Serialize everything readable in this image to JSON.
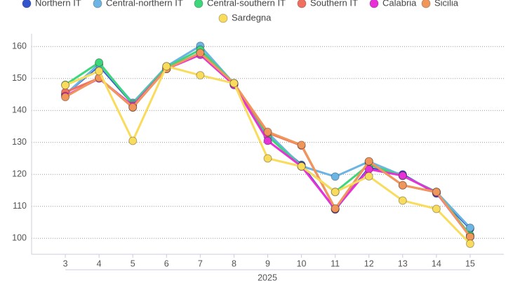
{
  "chart_data": {
    "type": "line",
    "x": [
      3,
      4,
      5,
      6,
      7,
      8,
      9,
      10,
      11,
      12,
      13,
      14,
      15
    ],
    "xlim": [
      2,
      16
    ],
    "xticks": [
      3,
      4,
      5,
      6,
      7,
      8,
      9,
      10,
      11,
      12,
      13,
      14,
      15
    ],
    "x_label": "2025",
    "ylim": [
      95,
      164
    ],
    "yticks": [
      100,
      110,
      120,
      130,
      140,
      150,
      160
    ],
    "grid": true,
    "legend": "top",
    "series": [
      {
        "name": "Northern IT",
        "color": "#3355cc",
        "values": [
          145,
          154,
          142,
          153,
          158,
          148,
          132,
          123,
          109,
          122,
          120,
          114,
          103
        ]
      },
      {
        "name": "Central-northern IT",
        "color": "#6cb4e4",
        "values": [
          145,
          154.5,
          142.4,
          153.8,
          160.2,
          148.4,
          133,
          122.6,
          119.3,
          124,
          119.6,
          114.5,
          103.3
        ]
      },
      {
        "name": "Central-southern IT",
        "color": "#3dd67a",
        "values": [
          148,
          155,
          142,
          153.5,
          159,
          148.5,
          132,
          122.5,
          114.5,
          123,
          119.5,
          114.5,
          101
        ]
      },
      {
        "name": "Southern IT",
        "color": "#f07060",
        "values": [
          145.7,
          150.1,
          140.9,
          153,
          157.5,
          148,
          133,
          129,
          109.2,
          124,
          116.6,
          114.4,
          100.5
        ]
      },
      {
        "name": "Calabria",
        "color": "#e830d8",
        "values": [
          144.5,
          150,
          141.5,
          153,
          157.4,
          148,
          130.5,
          122.5,
          109.2,
          121.6,
          119.6,
          114.3,
          100.5
        ]
      },
      {
        "name": "Sicilia",
        "color": "#f0965a",
        "values": [
          144.2,
          150.2,
          141,
          153,
          158,
          148.5,
          133.3,
          129.2,
          109.3,
          124.1,
          116.6,
          114.5,
          100.5
        ]
      },
      {
        "name": "Sardegna",
        "color": "#f9dc5c",
        "values": [
          147.9,
          152.3,
          130.5,
          153.8,
          151,
          148.5,
          125,
          122.5,
          114.5,
          119.4,
          111.8,
          109.2,
          98.3
        ]
      }
    ]
  }
}
